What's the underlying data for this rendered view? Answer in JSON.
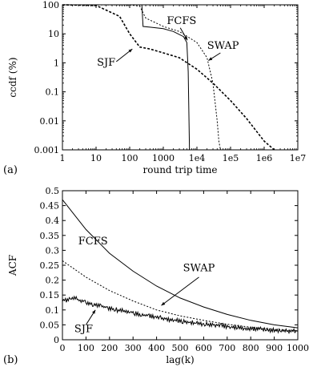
{
  "chart_data": [
    {
      "panel_label": "(a)",
      "type": "line",
      "xlabel": "round trip time",
      "ylabel": "ccdf (%)",
      "x_scale": "log",
      "y_scale": "log",
      "xlim": [
        1,
        10000000
      ],
      "ylim": [
        0.001,
        100
      ],
      "x_ticks": [
        {
          "v": 1,
          "label": "1"
        },
        {
          "v": 10,
          "label": "10"
        },
        {
          "v": 100,
          "label": "100"
        },
        {
          "v": 1000,
          "label": "1000"
        },
        {
          "v": 10000,
          "label": "1e4"
        },
        {
          "v": 100000,
          "label": "1e5"
        },
        {
          "v": 1000000,
          "label": "1e6"
        },
        {
          "v": 10000000,
          "label": "1e7"
        }
      ],
      "y_ticks": [
        {
          "v": 0.001,
          "label": "0.001"
        },
        {
          "v": 0.01,
          "label": "0.01"
        },
        {
          "v": 0.1,
          "label": "0.1"
        },
        {
          "v": 1,
          "label": "1"
        },
        {
          "v": 10,
          "label": "10"
        },
        {
          "v": 100,
          "label": "100"
        }
      ],
      "series": [
        {
          "name": "FCFS",
          "style": "solid",
          "x": [
            1,
            230,
            250,
            400,
            1000,
            2000,
            4000,
            5000,
            5500,
            5800,
            6000
          ],
          "y": [
            100,
            100,
            18,
            17,
            15,
            12,
            8,
            5,
            0.5,
            0.01,
            0.001
          ]
        },
        {
          "name": "SWAP",
          "style": "dotted",
          "x": [
            1,
            100,
            200,
            300,
            1000,
            3000,
            10000,
            20000,
            30000,
            40000,
            45000,
            50000
          ],
          "y": [
            100,
            99,
            90,
            35,
            18,
            12,
            5,
            1.5,
            0.2,
            0.01,
            0.002,
            0.001
          ]
        },
        {
          "name": "SJF",
          "style": "dashed",
          "x": [
            1,
            10,
            50,
            100,
            200,
            400,
            1000,
            3000,
            10000,
            30000,
            100000,
            300000,
            1000000,
            2000000
          ],
          "y": [
            100,
            95,
            40,
            10,
            3.5,
            3,
            2.2,
            1.5,
            0.6,
            0.2,
            0.05,
            0.012,
            0.002,
            0.001
          ]
        }
      ],
      "annotations": [
        {
          "text": "FCFS",
          "x": 3500,
          "y": 22
        },
        {
          "text": "SWAP",
          "x": 60000,
          "y": 3
        },
        {
          "text": "SJF",
          "x": 20,
          "y": 0.8
        }
      ],
      "grid": false
    },
    {
      "panel_label": "(b)",
      "type": "line",
      "xlabel": "lag(k)",
      "ylabel": "ACF",
      "xlim": [
        0,
        1000
      ],
      "ylim": [
        0,
        0.5
      ],
      "x_ticks": [
        {
          "v": 0,
          "label": "0"
        },
        {
          "v": 100,
          "label": "100"
        },
        {
          "v": 200,
          "label": "200"
        },
        {
          "v": 300,
          "label": "300"
        },
        {
          "v": 400,
          "label": "400"
        },
        {
          "v": 500,
          "label": "500"
        },
        {
          "v": 600,
          "label": "600"
        },
        {
          "v": 700,
          "label": "700"
        },
        {
          "v": 800,
          "label": "800"
        },
        {
          "v": 900,
          "label": "900"
        },
        {
          "v": 1000,
          "label": "1000"
        }
      ],
      "y_ticks": [
        {
          "v": 0,
          "label": "0"
        },
        {
          "v": 0.05,
          "label": "0.05"
        },
        {
          "v": 0.1,
          "label": "0.1"
        },
        {
          "v": 0.15,
          "label": "0.15"
        },
        {
          "v": 0.2,
          "label": "0.2"
        },
        {
          "v": 0.25,
          "label": "0.25"
        },
        {
          "v": 0.3,
          "label": "0.3"
        },
        {
          "v": 0.35,
          "label": "0.35"
        },
        {
          "v": 0.4,
          "label": "0.4"
        },
        {
          "v": 0.45,
          "label": "0.45"
        },
        {
          "v": 0.5,
          "label": "0.5"
        }
      ],
      "series": [
        {
          "name": "FCFS",
          "style": "solid",
          "x": [
            0,
            100,
            200,
            300,
            400,
            500,
            600,
            700,
            800,
            900,
            1000
          ],
          "y": [
            0.47,
            0.37,
            0.29,
            0.23,
            0.18,
            0.14,
            0.11,
            0.085,
            0.065,
            0.05,
            0.04
          ]
        },
        {
          "name": "SWAP",
          "style": "dotted",
          "x": [
            0,
            100,
            200,
            300,
            400,
            500,
            600,
            700,
            800,
            900,
            1000
          ],
          "y": [
            0.265,
            0.21,
            0.165,
            0.13,
            0.1,
            0.08,
            0.065,
            0.052,
            0.042,
            0.035,
            0.03
          ]
        },
        {
          "name": "SJF",
          "style": "noisy",
          "x": [
            0,
            50,
            100,
            200,
            300,
            400,
            500,
            600,
            700,
            800,
            900,
            1000
          ],
          "y": [
            0.13,
            0.14,
            0.125,
            0.105,
            0.09,
            0.075,
            0.063,
            0.053,
            0.045,
            0.038,
            0.032,
            0.028
          ]
        }
      ],
      "annotations": [
        {
          "text": "FCFS",
          "x": 130,
          "y": 0.32
        },
        {
          "text": "SWAP",
          "x": 580,
          "y": 0.23
        },
        {
          "text": "SJF",
          "x": 90,
          "y": 0.025
        }
      ],
      "grid": false
    }
  ]
}
